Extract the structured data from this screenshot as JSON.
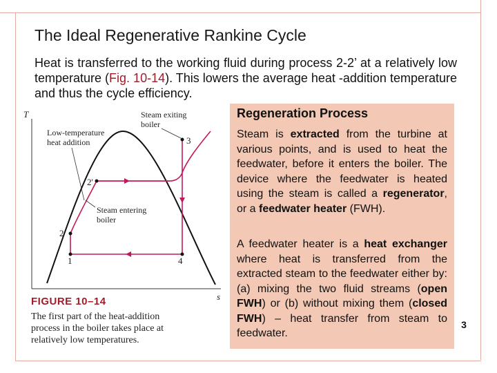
{
  "title": "The Ideal Regenerative Rankine Cycle",
  "intro": {
    "text_before": "Heat is transferred to the working fluid during process 2-2’ at a relatively low temperature (",
    "fig_ref": "Fig. 10-14",
    "text_after": "). This lowers the average heat -addition temperature and thus the cycle efficiency."
  },
  "figure": {
    "axis_y": "T",
    "axis_x": "s",
    "labels": {
      "steam_exiting_boiler": [
        "Steam exiting",
        "boiler"
      ],
      "low_temp_heat": [
        "Low-temperature",
        "heat addition"
      ],
      "steam_entering_boiler": [
        "Steam entering",
        "boiler"
      ],
      "points": [
        "1",
        "2",
        "2'",
        "3",
        "4"
      ]
    },
    "caption_title": "FIGURE 10–14",
    "caption": "The first part of the heat-addition process in the boiler takes place at relatively low temperatures."
  },
  "box": {
    "title": "Regeneration Process",
    "p1_a": "Steam is ",
    "p1_b": "extracted",
    "p1_c": " from the turbine at various points, and is used to heat the feedwater, before it enters the boiler. The device where the feedwater is heated using the steam is called a ",
    "p1_d": "regenerator",
    "p1_e": ", or a ",
    "p1_f": "feedwater heater",
    "p1_g": " (FWH).",
    "p2_a": "A feedwater heater is a ",
    "p2_b": "heat exchanger",
    "p2_c": " where heat is transferred from the extracted steam to the feedwater either by: (a) mixing the two fluid streams (",
    "p2_d": "open FWH",
    "p2_e": ") or (b) without mixing them (",
    "p2_f": "closed FWH",
    "p2_g": ") – heat transfer from steam to feedwater."
  },
  "page_number": "3",
  "colors": {
    "accent": "#a11c2a",
    "box_bg": "#f3c8b4",
    "curve": "#c2185b",
    "frame": "#e4a9a0"
  }
}
